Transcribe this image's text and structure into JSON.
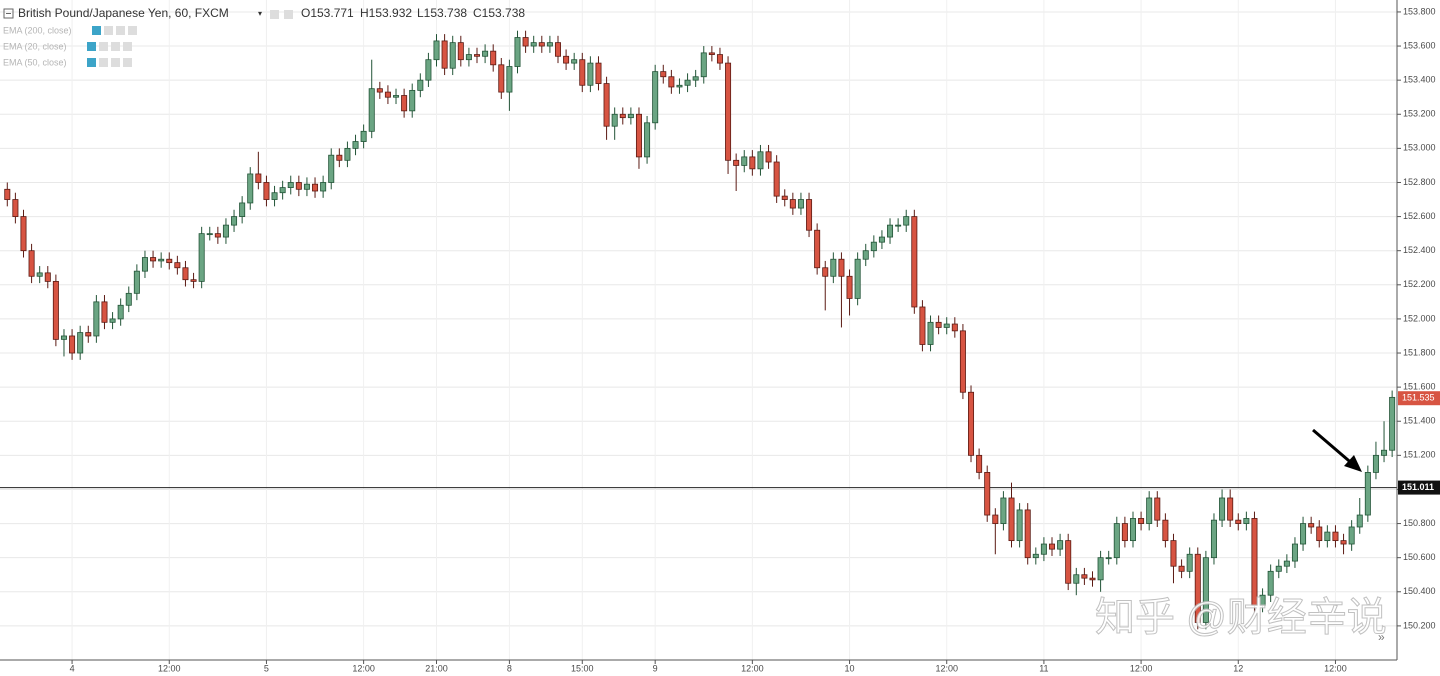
{
  "chart_data": {
    "type": "candlestick",
    "title": "British Pound/Japanese Yen, 60, FXCM",
    "header_values": [
      "O153.771",
      "H153.932",
      "L153.738",
      "C153.738"
    ],
    "indicators": [
      "EMA (200, close)",
      "EMA (20, close)",
      "EMA (50, close)"
    ],
    "watermark": "知乎 @财经辛说",
    "up_color": "#6ba583",
    "down_color": "#d75442",
    "xlim": [
      -0.9,
      171.6
    ],
    "xticks": [
      {
        "value": 8,
        "label": "4"
      },
      {
        "value": 20,
        "label": "12:00"
      },
      {
        "value": 32,
        "label": "5"
      },
      {
        "value": 44,
        "label": "12:00"
      },
      {
        "value": 53,
        "label": "21:00"
      },
      {
        "value": 62,
        "label": "8"
      },
      {
        "value": 71,
        "label": "15:00"
      },
      {
        "value": 80,
        "label": "9"
      },
      {
        "value": 92,
        "label": "12:00"
      },
      {
        "value": 104,
        "label": "10"
      },
      {
        "value": 116,
        "label": "12:00"
      },
      {
        "value": 128,
        "label": "11"
      },
      {
        "value": 140,
        "label": "12:00"
      },
      {
        "value": 152,
        "label": "12"
      },
      {
        "value": 164,
        "label": "12:00"
      }
    ],
    "ylim": [
      150.0,
      153.87
    ],
    "yticks": [
      {
        "value": 150.2,
        "label": "150.200"
      },
      {
        "value": 150.4,
        "label": "150.400"
      },
      {
        "value": 150.6,
        "label": "150.600"
      },
      {
        "value": 150.8,
        "label": "150.800"
      },
      {
        "value": 151.0,
        "label": "151.000"
      },
      {
        "value": 151.2,
        "label": "151.200"
      },
      {
        "value": 151.4,
        "label": "151.400"
      },
      {
        "value": 151.6,
        "label": "151.600"
      },
      {
        "value": 151.8,
        "label": "151.800"
      },
      {
        "value": 152.0,
        "label": "152.000"
      },
      {
        "value": 152.2,
        "label": "152.200"
      },
      {
        "value": 152.4,
        "label": "152.400"
      },
      {
        "value": 152.6,
        "label": "152.600"
      },
      {
        "value": 152.8,
        "label": "152.800"
      },
      {
        "value": 153.0,
        "label": "153.000"
      },
      {
        "value": 153.2,
        "label": "153.200"
      },
      {
        "value": 153.4,
        "label": "153.400"
      },
      {
        "value": 153.6,
        "label": "153.600"
      },
      {
        "value": 153.8,
        "label": "153.800"
      }
    ],
    "grid": true,
    "hline": 151.011,
    "last_price": 151.535,
    "open": [
      152.76,
      152.7,
      152.6,
      152.4,
      152.25,
      152.27,
      152.22,
      151.88,
      151.9,
      151.8,
      151.92,
      151.9,
      152.1,
      151.98,
      152.0,
      152.08,
      152.15,
      152.28,
      152.36,
      152.34,
      152.35,
      152.33,
      152.3,
      152.23,
      152.22,
      152.5,
      152.5,
      152.48,
      152.55,
      152.6,
      152.68,
      152.85,
      152.8,
      152.7,
      152.74,
      152.77,
      152.8,
      152.76,
      152.79,
      152.75,
      152.8,
      152.96,
      152.93,
      153.0,
      153.04,
      153.1,
      153.35,
      153.33,
      153.3,
      153.31,
      153.22,
      153.34,
      153.4,
      153.52,
      153.63,
      153.47,
      153.62,
      153.52,
      153.55,
      153.54,
      153.57,
      153.49,
      153.33,
      153.48,
      153.65,
      153.6,
      153.62,
      153.6,
      153.62,
      153.54,
      153.5,
      153.52,
      153.37,
      153.5,
      153.38,
      153.13,
      153.2,
      153.18,
      153.2,
      152.95,
      153.15,
      153.45,
      153.42,
      153.36,
      153.37,
      153.4,
      153.42,
      153.56,
      153.55,
      153.5,
      152.93,
      152.9,
      152.95,
      152.88,
      152.98,
      152.92,
      152.72,
      152.7,
      152.65,
      152.7,
      152.52,
      152.3,
      152.25,
      152.35,
      152.25,
      152.12,
      152.35,
      152.4,
      152.45,
      152.48,
      152.55,
      152.55,
      152.6,
      152.07,
      151.85,
      151.98,
      151.95,
      151.97,
      151.93,
      151.57,
      151.2,
      151.1,
      150.85,
      150.8,
      150.95,
      150.7,
      150.88,
      150.6,
      150.62,
      150.68,
      150.65,
      150.7,
      150.45,
      150.5,
      150.48,
      150.47,
      150.6,
      150.6,
      150.8,
      150.7,
      150.83,
      150.8,
      150.95,
      150.82,
      150.7,
      150.55,
      150.52,
      150.62,
      150.22,
      150.6,
      150.82,
      150.95,
      150.82,
      150.8,
      150.83,
      150.32,
      150.38,
      150.52,
      150.55,
      150.58,
      150.68,
      150.8,
      150.78,
      150.7,
      150.75,
      150.7,
      150.68,
      150.78,
      150.85,
      151.1,
      151.2,
      151.23
    ],
    "high": [
      152.8,
      152.74,
      152.64,
      152.44,
      152.31,
      152.31,
      152.26,
      151.94,
      151.94,
      151.96,
      151.96,
      152.14,
      152.14,
      152.04,
      152.12,
      152.19,
      152.32,
      152.4,
      152.4,
      152.39,
      152.39,
      152.37,
      152.34,
      152.27,
      152.54,
      152.54,
      152.54,
      152.59,
      152.64,
      152.72,
      152.89,
      152.98,
      152.84,
      152.78,
      152.81,
      152.84,
      152.84,
      152.83,
      152.83,
      152.84,
      153.0,
      153.0,
      153.04,
      153.08,
      153.14,
      153.52,
      153.39,
      153.37,
      153.35,
      153.35,
      153.38,
      153.44,
      153.56,
      153.67,
      153.67,
      153.66,
      153.66,
      153.59,
      153.59,
      153.61,
      153.61,
      153.53,
      153.52,
      153.69,
      153.69,
      153.66,
      153.66,
      153.66,
      153.66,
      153.58,
      153.56,
      153.56,
      153.54,
      153.54,
      153.42,
      153.24,
      153.24,
      153.24,
      153.24,
      153.19,
      153.49,
      153.49,
      153.46,
      153.41,
      153.44,
      153.46,
      153.6,
      153.6,
      153.59,
      153.54,
      152.97,
      152.99,
      152.99,
      153.02,
      153.02,
      152.96,
      152.76,
      152.74,
      152.74,
      152.74,
      152.56,
      152.34,
      152.39,
      152.39,
      152.29,
      152.39,
      152.44,
      152.49,
      152.52,
      152.59,
      152.59,
      152.64,
      152.64,
      152.11,
      152.02,
      152.02,
      152.01,
      152.01,
      151.97,
      151.61,
      151.24,
      151.14,
      150.89,
      150.99,
      151.04,
      150.92,
      150.92,
      150.66,
      150.72,
      150.72,
      150.74,
      150.74,
      150.54,
      150.54,
      150.52,
      150.64,
      150.64,
      150.84,
      150.84,
      150.87,
      150.87,
      150.99,
      150.99,
      150.86,
      150.74,
      150.59,
      150.66,
      150.66,
      150.64,
      150.86,
      151.0,
      151.0,
      150.86,
      150.87,
      150.87,
      150.42,
      150.56,
      150.59,
      150.62,
      150.72,
      150.84,
      150.84,
      150.82,
      150.79,
      150.79,
      150.74,
      150.82,
      150.95,
      151.14,
      151.28,
      151.4,
      151.58
    ],
    "low": [
      152.66,
      152.56,
      152.36,
      152.21,
      152.21,
      152.18,
      151.84,
      151.78,
      151.76,
      151.76,
      151.86,
      151.86,
      151.94,
      151.94,
      151.96,
      152.04,
      152.11,
      152.24,
      152.3,
      152.3,
      152.29,
      152.26,
      152.19,
      152.18,
      152.18,
      152.46,
      152.44,
      152.44,
      152.51,
      152.56,
      152.64,
      152.76,
      152.66,
      152.66,
      152.7,
      152.73,
      152.72,
      152.72,
      152.71,
      152.71,
      152.76,
      152.89,
      152.89,
      152.96,
      153.0,
      153.06,
      153.29,
      153.26,
      153.26,
      153.18,
      153.18,
      153.3,
      153.36,
      153.48,
      153.43,
      153.43,
      153.48,
      153.48,
      153.5,
      153.5,
      153.45,
      153.29,
      153.22,
      153.44,
      153.56,
      153.56,
      153.56,
      153.56,
      153.5,
      153.46,
      153.46,
      153.33,
      153.33,
      153.34,
      153.05,
      153.05,
      153.14,
      153.14,
      152.88,
      152.91,
      153.11,
      153.38,
      153.32,
      153.32,
      153.33,
      153.36,
      153.38,
      153.51,
      153.46,
      152.85,
      152.75,
      152.86,
      152.84,
      152.84,
      152.88,
      152.68,
      152.66,
      152.61,
      152.61,
      152.48,
      152.26,
      152.05,
      152.21,
      151.95,
      152.02,
      152.08,
      152.31,
      152.36,
      152.41,
      152.44,
      152.51,
      152.51,
      152.03,
      151.81,
      151.81,
      151.91,
      151.91,
      151.89,
      151.53,
      151.16,
      151.06,
      150.81,
      150.62,
      150.76,
      150.66,
      150.66,
      150.56,
      150.56,
      150.58,
      150.61,
      150.61,
      150.41,
      150.38,
      150.44,
      150.43,
      150.4,
      150.56,
      150.56,
      150.66,
      150.66,
      150.76,
      150.76,
      150.78,
      150.66,
      150.45,
      150.48,
      150.48,
      150.18,
      150.18,
      150.56,
      150.78,
      150.78,
      150.76,
      150.76,
      150.28,
      150.28,
      150.34,
      150.48,
      150.51,
      150.54,
      150.64,
      150.74,
      150.66,
      150.66,
      150.66,
      150.62,
      150.64,
      150.74,
      150.81,
      151.06,
      151.16,
      151.19
    ],
    "close": [
      152.7,
      152.6,
      152.4,
      152.25,
      152.27,
      152.22,
      151.88,
      151.9,
      151.8,
      151.92,
      151.9,
      152.1,
      151.98,
      152.0,
      152.08,
      152.15,
      152.28,
      152.36,
      152.34,
      152.35,
      152.33,
      152.3,
      152.23,
      152.22,
      152.5,
      152.5,
      152.48,
      152.55,
      152.6,
      152.68,
      152.85,
      152.8,
      152.7,
      152.74,
      152.77,
      152.8,
      152.76,
      152.79,
      152.75,
      152.8,
      152.96,
      152.93,
      153.0,
      153.04,
      153.1,
      153.35,
      153.33,
      153.3,
      153.31,
      153.22,
      153.34,
      153.4,
      153.52,
      153.63,
      153.47,
      153.62,
      153.52,
      153.55,
      153.54,
      153.57,
      153.49,
      153.33,
      153.48,
      153.65,
      153.6,
      153.62,
      153.6,
      153.62,
      153.54,
      153.5,
      153.52,
      153.37,
      153.5,
      153.38,
      153.13,
      153.2,
      153.18,
      153.2,
      152.95,
      153.15,
      153.45,
      153.42,
      153.36,
      153.37,
      153.4,
      153.42,
      153.56,
      153.55,
      153.5,
      152.93,
      152.9,
      152.95,
      152.88,
      152.98,
      152.92,
      152.72,
      152.7,
      152.65,
      152.7,
      152.52,
      152.3,
      152.25,
      152.35,
      152.25,
      152.12,
      152.35,
      152.4,
      152.45,
      152.48,
      152.55,
      152.55,
      152.6,
      152.07,
      151.85,
      151.98,
      151.95,
      151.97,
      151.93,
      151.57,
      151.2,
      151.1,
      150.85,
      150.8,
      150.95,
      150.7,
      150.88,
      150.6,
      150.62,
      150.68,
      150.65,
      150.7,
      150.45,
      150.5,
      150.48,
      150.47,
      150.6,
      150.6,
      150.8,
      150.7,
      150.83,
      150.8,
      150.95,
      150.82,
      150.7,
      150.55,
      150.52,
      150.62,
      150.22,
      150.6,
      150.82,
      150.95,
      150.82,
      150.8,
      150.83,
      150.32,
      150.38,
      150.52,
      150.55,
      150.58,
      150.68,
      150.8,
      150.78,
      150.7,
      150.75,
      150.7,
      150.68,
      150.78,
      150.85,
      151.1,
      151.2,
      151.23,
      151.54
    ]
  }
}
